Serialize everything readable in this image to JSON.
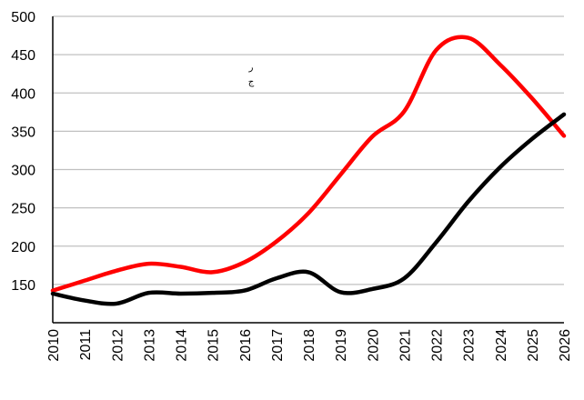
{
  "chart_data": {
    "type": "line",
    "title": "",
    "xlabel": "",
    "ylabel": "",
    "x": [
      "2010",
      "2011",
      "2012",
      "2013",
      "2014",
      "2015",
      "2016",
      "2017",
      "2018",
      "2019",
      "2020",
      "2021",
      "2022",
      "2023",
      "2024",
      "2025",
      "2026"
    ],
    "ylim": [
      100,
      500
    ],
    "yticks": [
      150,
      200,
      250,
      300,
      350,
      400,
      450,
      500
    ],
    "grid": true,
    "legend": "none",
    "series": [
      {
        "color": "#ff0000",
        "values": [
          142,
          155,
          168,
          177,
          173,
          166,
          179,
          206,
          243,
          293,
          343,
          376,
          456,
          472,
          437,
          393,
          344
        ]
      },
      {
        "color": "#000000",
        "values": [
          138,
          129,
          125,
          139,
          138,
          139,
          142,
          158,
          166,
          140,
          144,
          158,
          205,
          258,
          303,
          340,
          372
        ]
      }
    ],
    "annotations": [
      "ر",
      "ج"
    ]
  }
}
